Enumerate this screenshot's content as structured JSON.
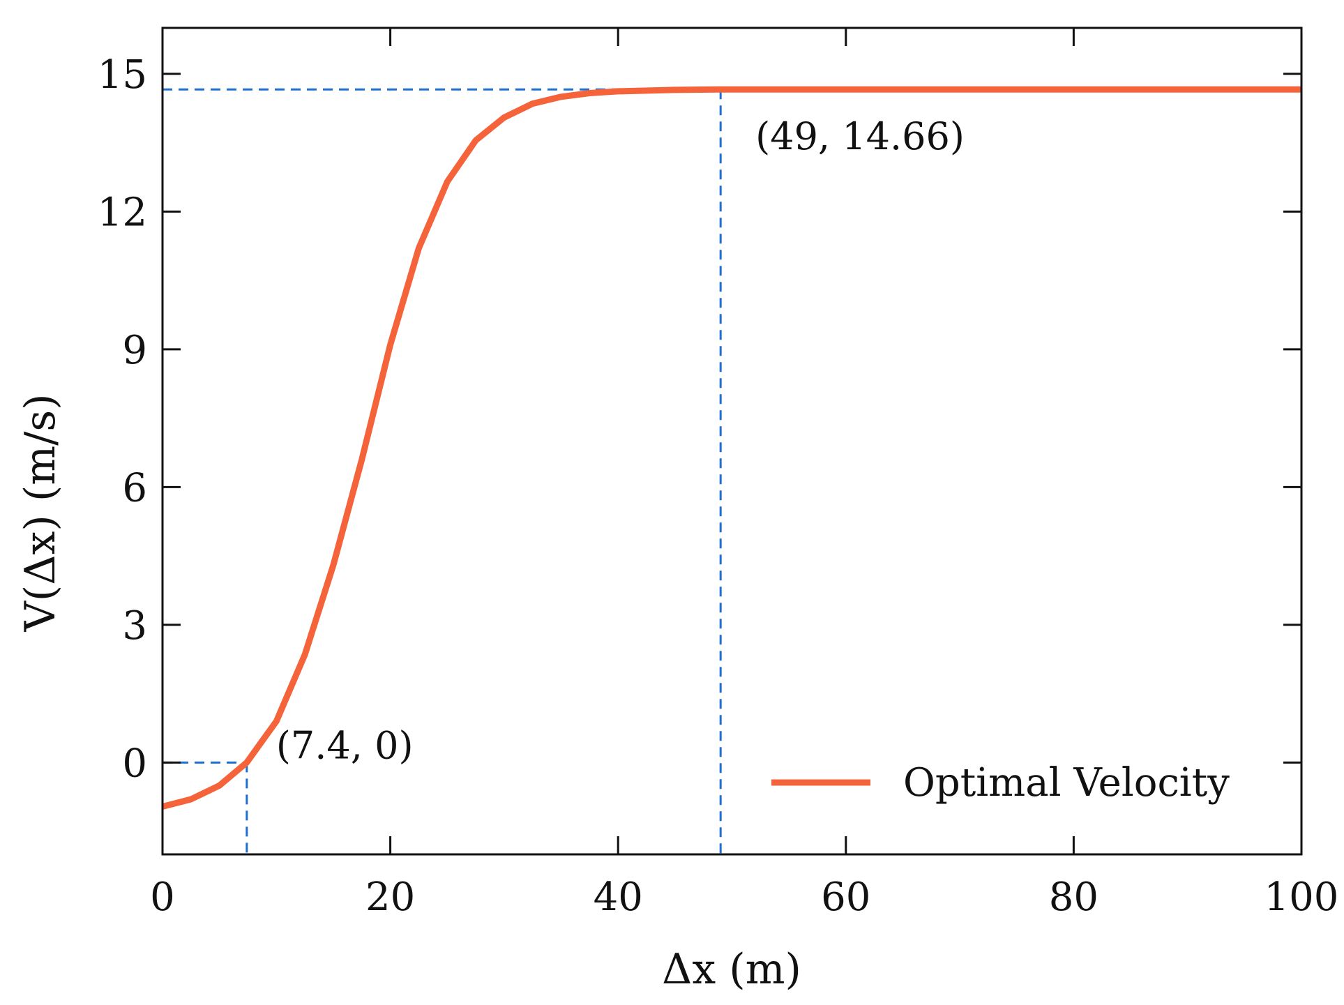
{
  "chart_data": {
    "type": "line",
    "title": "",
    "xlabel": "Δx (m)",
    "ylabel": "V(Δx) (m/s)",
    "xlim": [
      0,
      100
    ],
    "ylim": [
      -2,
      16
    ],
    "xticks": [
      0,
      20,
      40,
      60,
      80,
      100
    ],
    "xtick_labels": [
      "0",
      "20",
      "40",
      "60",
      "80",
      "100"
    ],
    "yticks": [
      0,
      3,
      6,
      9,
      12,
      15
    ],
    "ytick_labels": [
      "0",
      "3",
      "6",
      "9",
      "12",
      "15"
    ],
    "grid": false,
    "legend_position": "bottom-right",
    "series": [
      {
        "name": "Optimal Velocity",
        "color": "#f4633a",
        "x": [
          0,
          2.5,
          5,
          7.4,
          10,
          12.5,
          15,
          17.5,
          20,
          22.5,
          25,
          27.5,
          30,
          32.5,
          35,
          37.5,
          40,
          45,
          49,
          60,
          80,
          100
        ],
        "y": [
          -0.96,
          -0.8,
          -0.5,
          0.0,
          0.9,
          2.35,
          4.3,
          6.6,
          9.1,
          11.2,
          12.65,
          13.55,
          14.05,
          14.35,
          14.5,
          14.58,
          14.62,
          14.65,
          14.66,
          14.66,
          14.66,
          14.66
        ]
      }
    ],
    "annotations": [
      {
        "text": "(7.4, 0)",
        "x": 7.4,
        "y": 0
      },
      {
        "text": "(49, 14.66)",
        "x": 49,
        "y": 14.66
      }
    ],
    "reference_lines_color": "#1f6fd1"
  }
}
